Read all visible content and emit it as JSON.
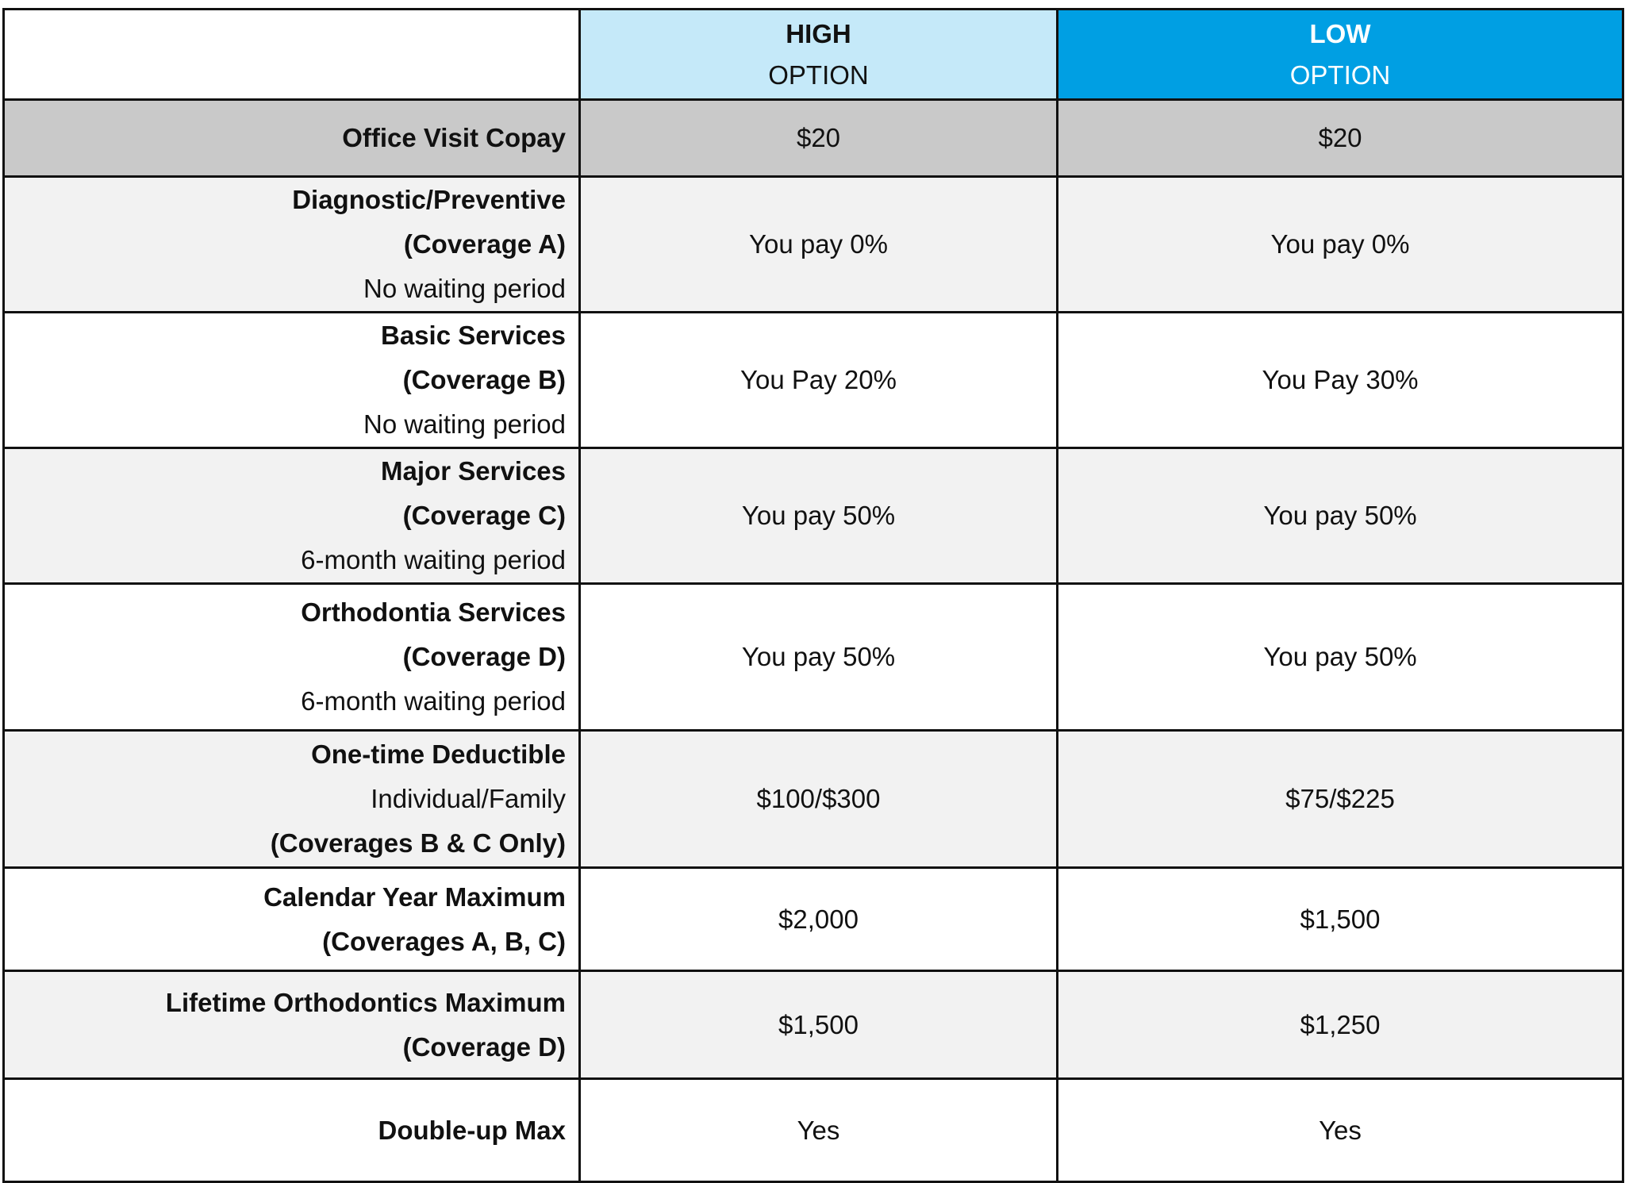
{
  "table": {
    "header": [
      {
        "title": "HIGH",
        "subtitle": "OPTION"
      },
      {
        "title": "LOW",
        "subtitle": "OPTION"
      }
    ],
    "rows": [
      {
        "label": [
          {
            "text": "Office Visit Copay",
            "bold": true
          }
        ],
        "values": [
          "$20",
          "$20"
        ]
      },
      {
        "label": [
          {
            "text": "Diagnostic/Preventive",
            "bold": true
          },
          {
            "text": "(Coverage A)",
            "bold": true
          },
          {
            "text": "No waiting period",
            "bold": false
          }
        ],
        "values": [
          "You pay 0%",
          "You pay 0%"
        ]
      },
      {
        "label": [
          {
            "text": "Basic Services",
            "bold": true
          },
          {
            "text": "(Coverage B)",
            "bold": true
          },
          {
            "text": "No waiting period",
            "bold": false
          }
        ],
        "values": [
          "You Pay 20%",
          "You Pay 30%"
        ]
      },
      {
        "label": [
          {
            "text": "Major Services",
            "bold": true
          },
          {
            "text": "(Coverage C)",
            "bold": true
          },
          {
            "text": "6-month waiting period",
            "bold": false
          }
        ],
        "values": [
          "You pay 50%",
          "You pay 50%"
        ]
      },
      {
        "label": [
          {
            "text": "Orthodontia Services",
            "bold": true
          },
          {
            "text": "(Coverage D)",
            "bold": true
          },
          {
            "text": "6-month waiting period",
            "bold": false
          }
        ],
        "values": [
          "You pay 50%",
          "You pay 50%"
        ]
      },
      {
        "label": [
          {
            "text": "One-time Deductible",
            "bold": true
          },
          {
            "text": "Individual/Family",
            "bold": false
          },
          {
            "text": "(Coverages B & C Only)",
            "bold": true
          }
        ],
        "values": [
          "$100/$300",
          "$75/$225"
        ]
      },
      {
        "label": [
          {
            "text": "Calendar Year Maximum",
            "bold": true
          },
          {
            "text": "(Coverages A, B, C)",
            "bold": true
          }
        ],
        "values": [
          "$2,000",
          "$1,500"
        ]
      },
      {
        "label": [
          {
            "text": "Lifetime Orthodontics Maximum",
            "bold": true
          },
          {
            "text": "(Coverage D)",
            "bold": true
          }
        ],
        "values": [
          "$1,500",
          "$1,250"
        ]
      },
      {
        "label": [
          {
            "text": "Double-up Max",
            "bold": true
          }
        ],
        "values": [
          "Yes",
          "Yes"
        ]
      }
    ]
  }
}
